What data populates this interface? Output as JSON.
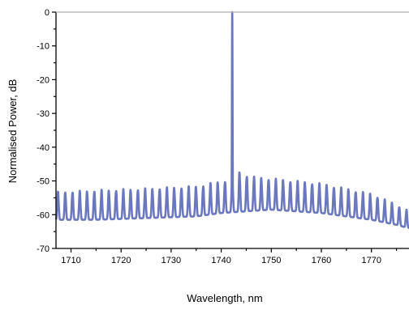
{
  "chart_data": {
    "type": "line",
    "title": "",
    "xlabel": "Wavelength, nm",
    "ylabel": "Normalised Power, dB",
    "xlim": [
      1707,
      1777.5
    ],
    "ylim": [
      -70,
      0
    ],
    "xticks": [
      1710,
      1720,
      1730,
      1740,
      1750,
      1760,
      1770
    ],
    "yticks": [
      0,
      -10,
      -20,
      -30,
      -40,
      -50,
      -60,
      -70
    ],
    "grid": false,
    "legend": "none",
    "line_color": "#6b78be",
    "series": [
      {
        "peak": {
          "x": 1742.2,
          "y": 0
        },
        "comb_spacing_nm": 1.45,
        "upper_envelope": [
          [
            1707.5,
            -53.5
          ],
          [
            1715,
            -53
          ],
          [
            1725,
            -52.5
          ],
          [
            1735,
            -51.8
          ],
          [
            1741,
            -50
          ],
          [
            1743.5,
            -47.5
          ],
          [
            1746,
            -49
          ],
          [
            1750,
            -49.5
          ],
          [
            1760,
            -51
          ],
          [
            1770,
            -54
          ],
          [
            1774,
            -56.5
          ],
          [
            1777.5,
            -59
          ]
        ],
        "lower_envelope": [
          [
            1707.5,
            -61.5
          ],
          [
            1715,
            -61.5
          ],
          [
            1725,
            -61
          ],
          [
            1735,
            -60.5
          ],
          [
            1740,
            -59.5
          ],
          [
            1745,
            -59
          ],
          [
            1750,
            -58.5
          ],
          [
            1755,
            -59
          ],
          [
            1760,
            -59.5
          ],
          [
            1765,
            -60.5
          ],
          [
            1770,
            -61.5
          ],
          [
            1775,
            -63
          ],
          [
            1777.5,
            -64
          ]
        ]
      }
    ]
  }
}
